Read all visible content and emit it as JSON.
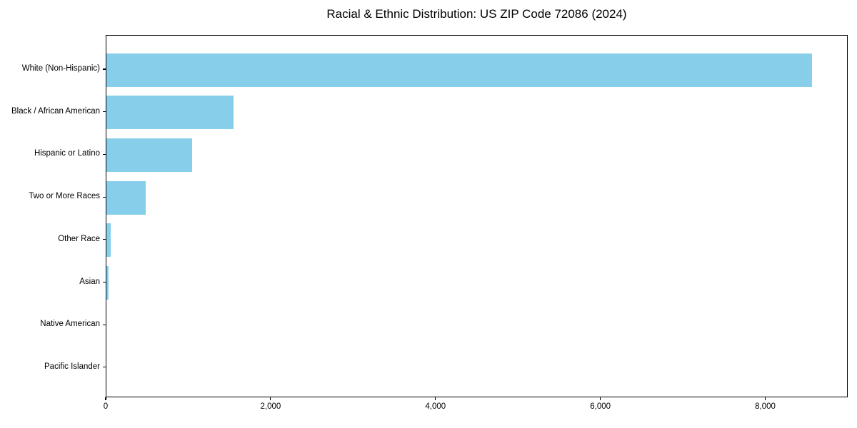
{
  "chart_data": {
    "type": "bar",
    "orientation": "horizontal",
    "title": "Racial & Ethnic Distribution: US ZIP Code 72086 (2024)",
    "categories": [
      "White (Non-Hispanic)",
      "Black / African American",
      "Hispanic or Latino",
      "Two or More Races",
      "Other Race",
      "Asian",
      "Native American",
      "Pacific Islander"
    ],
    "values": [
      8560,
      1540,
      1040,
      480,
      50,
      30,
      0,
      0
    ],
    "bar_color": "#87CEEB",
    "xlim": [
      0,
      9000
    ],
    "xticks": [
      0,
      2000,
      4000,
      6000,
      8000
    ],
    "xtick_labels": [
      "0",
      "2,000",
      "4,000",
      "6,000",
      "8,000"
    ],
    "xlabel": "",
    "ylabel": "",
    "grid": false,
    "legend": null,
    "spine_color": "#000000",
    "text_color": "#000000"
  }
}
